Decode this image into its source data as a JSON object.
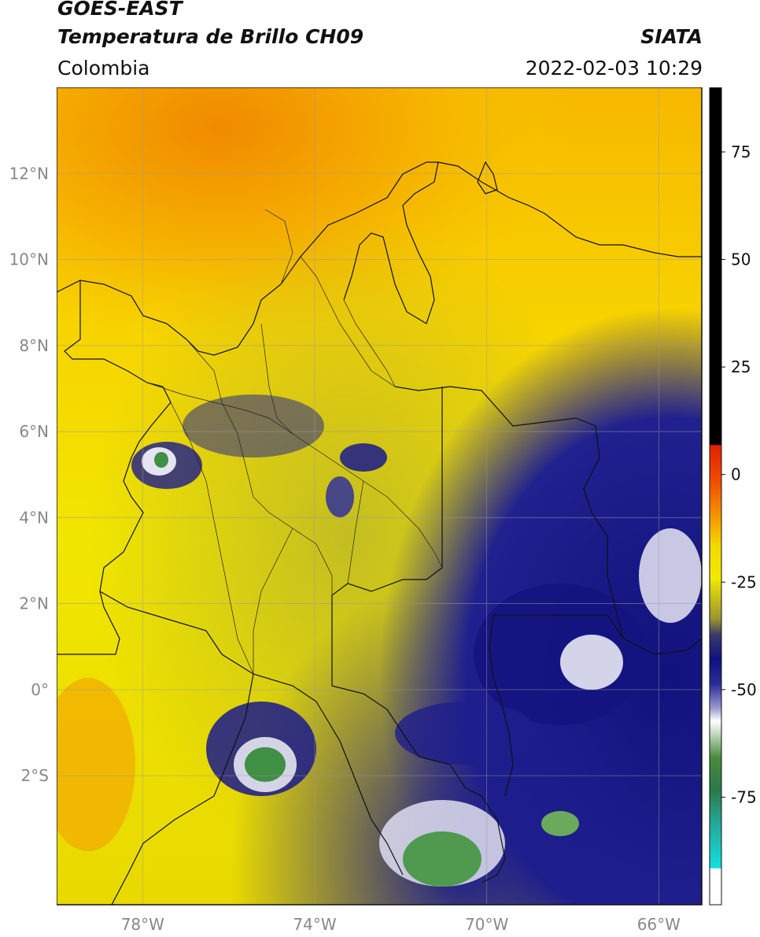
{
  "header": {
    "satellite": "GOES-EAST",
    "product": "Temperatura de Brillo CH09",
    "region": "Colombia",
    "organization": "SIATA",
    "timestamp": "2022-02-03 10:29"
  },
  "map": {
    "lon_range": [
      -80,
      -65
    ],
    "lat_range": [
      -5,
      14
    ],
    "lon_ticks": [
      {
        "value": -78,
        "label": "78°W"
      },
      {
        "value": -74,
        "label": "74°W"
      },
      {
        "value": -70,
        "label": "70°W"
      },
      {
        "value": -66,
        "label": "66°W"
      }
    ],
    "lat_ticks": [
      {
        "value": 12,
        "label": "12°N"
      },
      {
        "value": 10,
        "label": "10°N"
      },
      {
        "value": 8,
        "label": "8°N"
      },
      {
        "value": 6,
        "label": "6°N"
      },
      {
        "value": 4,
        "label": "4°N"
      },
      {
        "value": 2,
        "label": "2°N"
      },
      {
        "value": 0,
        "label": "0°"
      },
      {
        "value": -2,
        "label": "2°S"
      }
    ],
    "gridlines": true,
    "colors": {
      "warm": "#f4a000",
      "mid": "#f5e600",
      "olive": "#8c8a3a",
      "cold": "#1a1a8c",
      "very_cold": "#ffffff",
      "coldest": "#3b8a3b"
    }
  },
  "colorbar": {
    "range": [
      -100,
      90
    ],
    "ticks": [
      {
        "value": 75,
        "label": "75"
      },
      {
        "value": 50,
        "label": "50"
      },
      {
        "value": 25,
        "label": "25"
      },
      {
        "value": 0,
        "label": "0"
      },
      {
        "value": -25,
        "label": "-25"
      },
      {
        "value": -50,
        "label": "-50"
      },
      {
        "value": -75,
        "label": "-75"
      }
    ]
  }
}
